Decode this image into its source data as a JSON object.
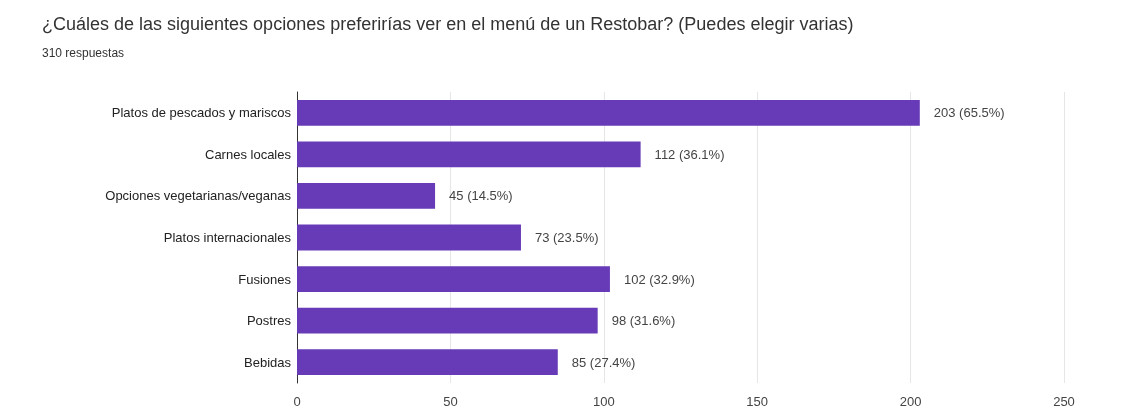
{
  "chart_data": {
    "type": "bar",
    "orientation": "horizontal",
    "title": "¿Cuáles de las siguientes opciones preferirías ver en el menú de un Restobar? (Puedes elegir varias)",
    "subtitle": "310 respuestas",
    "categories": [
      "Platos de pescados y mariscos",
      "Carnes locales",
      "Opciones vegetarianas/veganas",
      "Platos internacionales",
      "Fusiones",
      "Postres",
      "Bebidas"
    ],
    "values": [
      203,
      112,
      45,
      73,
      102,
      98,
      85
    ],
    "value_labels": [
      "203 (65.5%)",
      "112 (36.1%)",
      "45 (14.5%)",
      "73 (23.5%)",
      "102 (32.9%)",
      "98 (31.6%)",
      "85 (27.4%)"
    ],
    "color": "#673ab7",
    "xlim": [
      0,
      250
    ],
    "xticks": [
      0,
      50,
      100,
      150,
      200,
      250
    ],
    "grid": "x"
  }
}
